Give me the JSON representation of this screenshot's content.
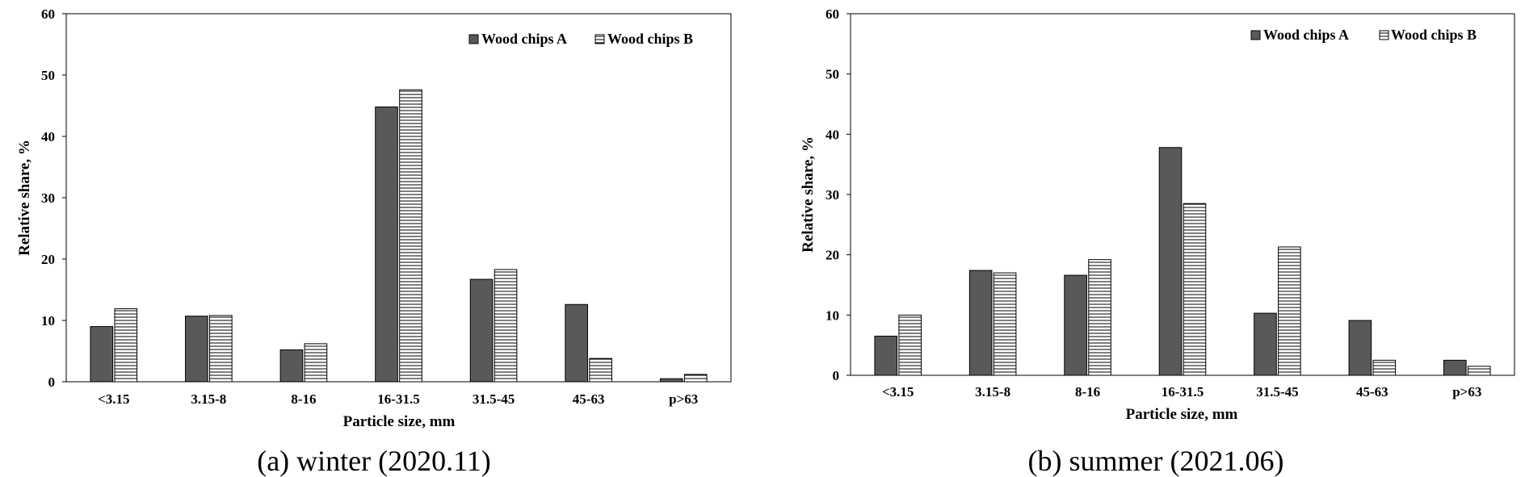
{
  "chart_data": [
    {
      "type": "bar",
      "caption": "(a) winter (2020.11)",
      "xlabel": "Particle size, mm",
      "ylabel": "Relative share, %",
      "ylim": [
        0,
        60
      ],
      "yticks": [
        "0",
        "10",
        "20",
        "30",
        "40",
        "50",
        "60"
      ],
      "categories": [
        "<3.15",
        "3.15-8",
        "8-16",
        "16-31.5",
        "31.5-45",
        "45-63",
        "p>63"
      ],
      "series": [
        {
          "name": "Wood chips A",
          "color": "#595959",
          "pattern": "solid",
          "values": [
            9.0,
            10.7,
            5.2,
            44.8,
            16.7,
            12.6,
            0.5
          ]
        },
        {
          "name": "Wood chips B",
          "color": "#ffffff",
          "pattern": "horizontal-lines",
          "values": [
            11.9,
            10.8,
            6.2,
            47.6,
            18.3,
            3.8,
            1.2
          ]
        }
      ],
      "legend_position": "top-right",
      "grid": false
    },
    {
      "type": "bar",
      "caption": "(b) summer (2021.06)",
      "xlabel": "Particle size, mm",
      "ylabel": "Relative share, %",
      "ylim": [
        0,
        60
      ],
      "yticks": [
        "0",
        "10",
        "20",
        "30",
        "40",
        "50",
        "60"
      ],
      "categories": [
        "<3.15",
        "3.15-8",
        "8-16",
        "16-31.5",
        "31.5-45",
        "45-63",
        "p>63"
      ],
      "series": [
        {
          "name": "Wood chips A",
          "color": "#595959",
          "pattern": "solid",
          "values": [
            6.5,
            17.4,
            16.6,
            37.8,
            10.3,
            9.1,
            2.5
          ]
        },
        {
          "name": "Wood chips B",
          "color": "#ffffff",
          "pattern": "horizontal-lines",
          "values": [
            10.0,
            17.0,
            19.2,
            28.5,
            21.3,
            2.5,
            1.5
          ]
        }
      ],
      "legend_position": "top-right",
      "grid": false
    }
  ]
}
